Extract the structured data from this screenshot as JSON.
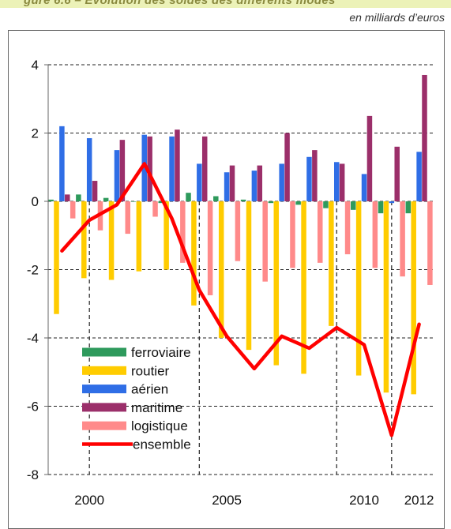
{
  "header": {
    "banner_text": "gure 6.6  – Évolution des soldes des différents modes",
    "unit": "en milliards d’euros"
  },
  "chart_data": {
    "type": "bar",
    "years": [
      1999,
      2000,
      2001,
      2002,
      2003,
      2004,
      2005,
      2006,
      2007,
      2008,
      2009,
      2010,
      2011,
      2012
    ],
    "x_tick_labels": [
      {
        "year": 2000,
        "label": "2000"
      },
      {
        "year": 2005,
        "label": "2005"
      },
      {
        "year": 2010,
        "label": "2010"
      },
      {
        "year": 2012,
        "label": "2012"
      }
    ],
    "ylim": [
      -8,
      4
    ],
    "y_ticks": [
      4,
      2,
      0,
      -2,
      -4,
      -6,
      -8
    ],
    "grid": "horizontal dashed",
    "vertical_dashed_years": [
      2000,
      2004,
      2009,
      2011
    ],
    "legend_position": "bottom-left",
    "series": [
      {
        "name": "ferroviaire",
        "kind": "bar",
        "color": "#2e9a5c",
        "values": [
          0.05,
          0.2,
          0.1,
          0.0,
          -0.05,
          0.25,
          0.15,
          0.05,
          -0.05,
          -0.1,
          -0.2,
          -0.25,
          -0.35,
          -0.35
        ]
      },
      {
        "name": "routier",
        "kind": "bar",
        "color": "#ffcc00",
        "values": [
          -3.3,
          -2.25,
          -2.3,
          -2.05,
          -2.0,
          -3.05,
          -4.0,
          -4.35,
          -4.8,
          -5.05,
          -3.65,
          -5.1,
          -5.6,
          -5.65
        ]
      },
      {
        "name": "aérien",
        "kind": "bar",
        "color": "#2f6ee6",
        "values": [
          2.2,
          1.85,
          1.5,
          1.95,
          1.9,
          1.1,
          0.85,
          0.9,
          1.1,
          1.3,
          1.15,
          0.8,
          -0.05,
          1.45
        ]
      },
      {
        "name": "maritime",
        "kind": "bar",
        "color": "#9b2f6a",
        "values": [
          0.2,
          0.6,
          1.8,
          1.9,
          2.1,
          1.9,
          1.05,
          1.05,
          2.0,
          1.5,
          1.1,
          2.5,
          1.6,
          3.7
        ]
      },
      {
        "name": "logistique",
        "kind": "bar",
        "color": "#ff8a8a",
        "values": [
          -0.5,
          -0.85,
          -0.95,
          -0.45,
          -1.8,
          -2.75,
          -1.75,
          -2.35,
          -1.95,
          -1.8,
          -1.55,
          -1.95,
          -2.2,
          -2.45
        ]
      },
      {
        "name": "ensemble",
        "kind": "line",
        "color": "#ff0000",
        "values": [
          -1.45,
          -0.55,
          -0.1,
          1.1,
          -0.5,
          -2.6,
          -3.95,
          -4.9,
          -3.95,
          -4.3,
          -3.7,
          -4.2,
          -6.85,
          -3.6
        ]
      }
    ]
  }
}
